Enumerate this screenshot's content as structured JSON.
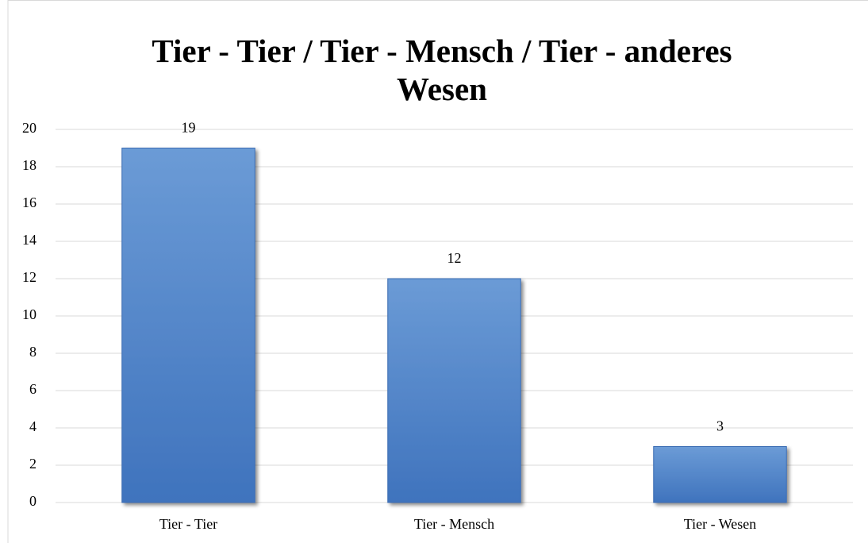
{
  "chart_data": {
    "type": "bar",
    "title": "Tier - Tier / Tier - Mensch / Tier - anderes Wesen",
    "categories": [
      "Tier - Tier",
      "Tier - Mensch",
      "Tier - Wesen"
    ],
    "values": [
      19,
      12,
      3
    ],
    "color": "#4a7ec8",
    "ylim": [
      0,
      20
    ],
    "yticks": [
      0,
      2,
      4,
      6,
      8,
      10,
      12,
      14,
      16,
      18,
      20
    ],
    "grid": true
  }
}
